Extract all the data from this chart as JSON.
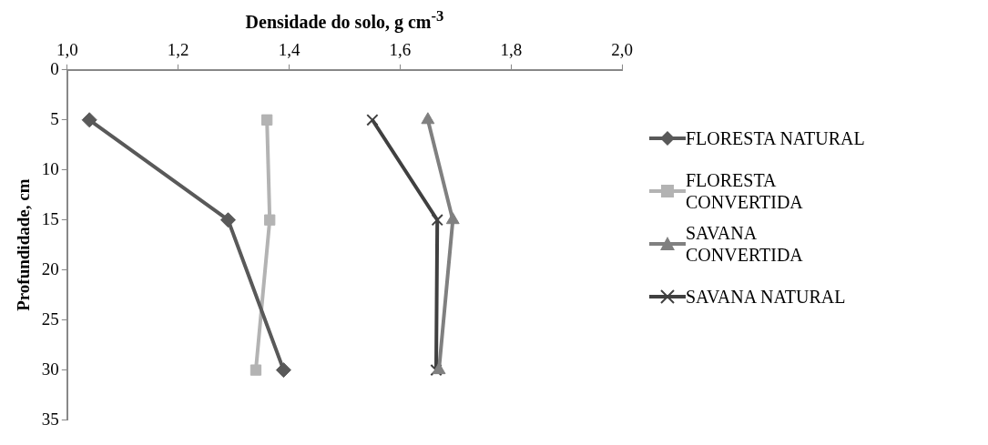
{
  "chart_data": {
    "type": "line",
    "xlabel": "Densidade do solo, g cm$^{-3}$",
    "ylabel": "Profundidade, cm",
    "xlim": [
      1.0,
      2.0
    ],
    "xticks": [
      {
        "value": 1.0,
        "label": "1,0"
      },
      {
        "value": 1.2,
        "label": "1,2"
      },
      {
        "value": 1.4,
        "label": "1,4"
      },
      {
        "value": 1.6,
        "label": "1,6"
      },
      {
        "value": 1.8,
        "label": "1,8"
      },
      {
        "value": 2.0,
        "label": "2,0"
      }
    ],
    "ylim": [
      35,
      0
    ],
    "yticks": [
      0,
      5,
      10,
      15,
      20,
      25,
      30,
      35
    ],
    "grid": false,
    "legend": "right",
    "series": [
      {
        "name": "FLORESTA NATURAL",
        "color": "#595959",
        "marker": "diamond",
        "x": [
          1.04,
          1.29,
          1.39
        ],
        "values": [
          5,
          15,
          30
        ]
      },
      {
        "name": "FLORESTA CONVERTIDA",
        "color": "#b3b3b3",
        "marker": "square",
        "x": [
          1.36,
          1.365,
          1.34
        ],
        "values": [
          5,
          15,
          30
        ]
      },
      {
        "name": "SAVANA CONVERTIDA",
        "color": "#808080",
        "marker": "triangle",
        "x": [
          1.65,
          1.695,
          1.67
        ],
        "values": [
          5,
          15,
          30
        ]
      },
      {
        "name": "SAVANA NATURAL",
        "color": "#404040",
        "marker": "cross",
        "x": [
          1.55,
          1.667,
          1.665
        ],
        "values": [
          5,
          15,
          30
        ]
      }
    ]
  }
}
